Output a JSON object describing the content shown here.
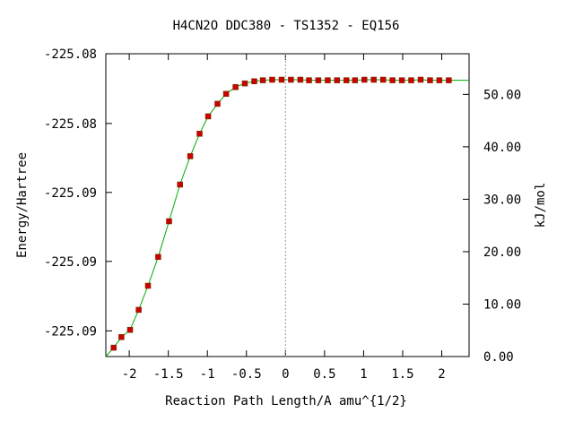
{
  "chart_data": {
    "type": "line",
    "title": "H4CN2O   DDC380 - TS1352 - EQ156",
    "xlabel": "Reaction Path Length/A amu^{1/2}",
    "ylabel": "Energy/Hartree",
    "y2label": "kJ/mol",
    "xlim": [
      -2.3,
      2.35
    ],
    "x_ticks": [
      -2,
      -1.5,
      -1,
      -0.5,
      0,
      0.5,
      1,
      1.5,
      2
    ],
    "x_tick_labels": [
      "-2",
      "-1.5",
      "-1",
      "-0.5",
      "0",
      "0.5",
      "1",
      "1.5",
      "2"
    ],
    "y_tick_labels": [
      "-225.08",
      "-225.08",
      "-225.09",
      "-225.09",
      "-225.09"
    ],
    "y_tick_positions_kj": [
      57.75,
      44.45,
      31.3,
      18.15,
      4.9
    ],
    "y2lim": [
      0,
      57.75
    ],
    "y2_ticks": [
      0,
      10,
      20,
      30,
      40,
      50
    ],
    "y2_tick_labels": [
      "0.00",
      "10.00",
      "20.00",
      "30.00",
      "40.00",
      "50.00"
    ],
    "vline_x": 0,
    "grid": false,
    "line_color": "#00aa00",
    "marker_color": "#cc0000",
    "series": [
      {
        "x": [
          -2.2,
          -2.1,
          -1.99,
          -1.88,
          -1.76,
          -1.63,
          -1.49,
          -1.35,
          -1.22,
          -1.1,
          -0.99,
          -0.87,
          -0.76,
          -0.64,
          -0.52,
          -0.4,
          -0.29,
          -0.17,
          -0.05,
          0.07,
          0.19,
          0.3,
          0.42,
          0.54,
          0.66,
          0.78,
          0.89,
          1.01,
          1.13,
          1.25,
          1.37,
          1.49,
          1.61,
          1.73,
          1.85,
          1.97,
          2.09
        ],
        "values": [
          1.7,
          3.7,
          5.1,
          8.9,
          13.5,
          19.0,
          25.8,
          32.8,
          38.2,
          42.5,
          45.8,
          48.2,
          50.1,
          51.4,
          52.1,
          52.5,
          52.7,
          52.8,
          52.8,
          52.8,
          52.8,
          52.7,
          52.7,
          52.7,
          52.7,
          52.7,
          52.7,
          52.8,
          52.8,
          52.8,
          52.7,
          52.7,
          52.7,
          52.8,
          52.7,
          52.7,
          52.7
        ]
      }
    ]
  }
}
